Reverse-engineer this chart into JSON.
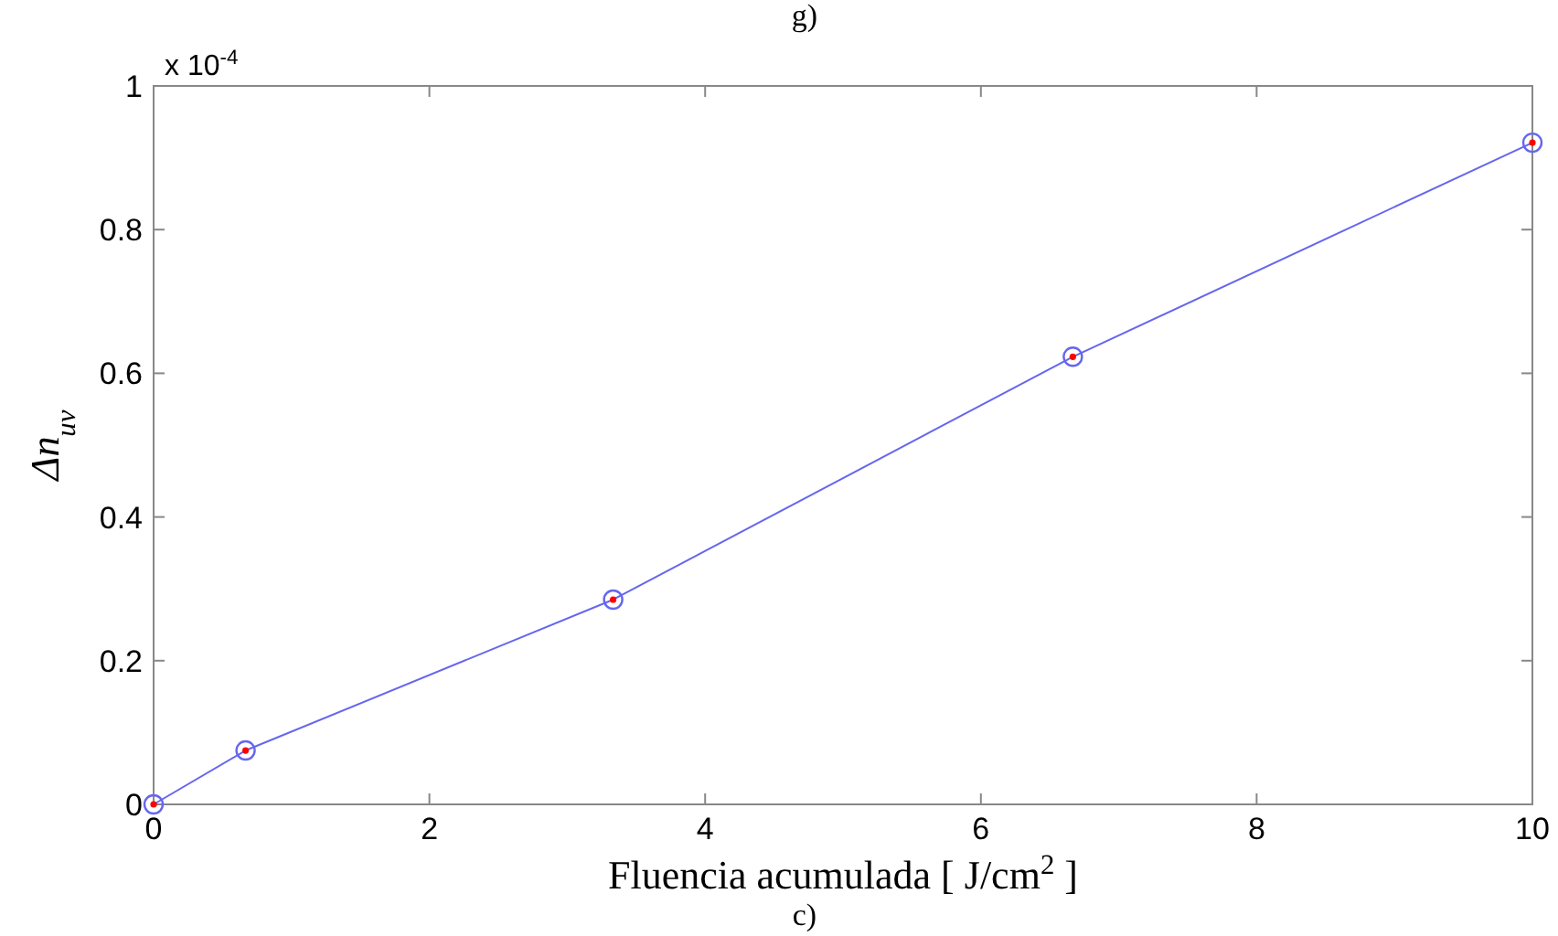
{
  "chart_data": {
    "type": "line",
    "xlabel": "Fluencia acumulada [ J/cm$^{2}$ ]",
    "ylabel": "Δn$_{uv}$",
    "annotations": [
      "g)",
      "x 10$^{-4}$",
      "c)"
    ],
    "x": [
      0,
      0.667,
      3.333,
      6.667,
      10
    ],
    "series": [
      {
        "color": "#6666ee",
        "values": [
          0,
          0.075,
          0.285,
          0.623,
          0.921
        ]
      }
    ],
    "xlim": [
      0,
      10
    ],
    "xticks": [
      0,
      2,
      4,
      6,
      8,
      10
    ],
    "ylim": [
      0,
      1
    ],
    "yticks": [
      0,
      0.2,
      0.4,
      0.6,
      0.8,
      1
    ],
    "marker": "circle",
    "line_style": "solid"
  }
}
